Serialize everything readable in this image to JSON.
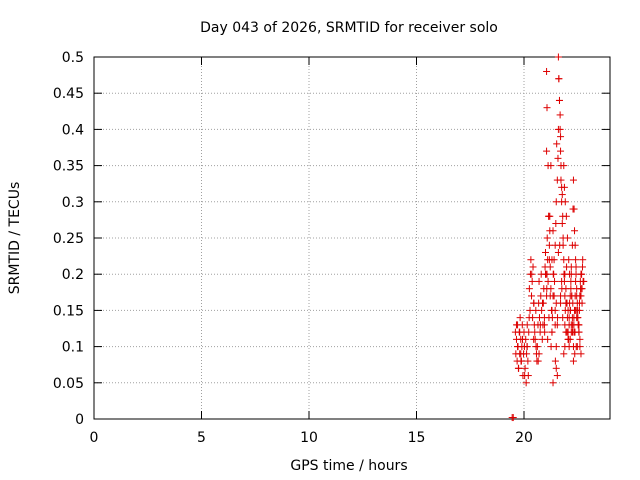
{
  "chart_data": {
    "type": "scatter",
    "title": "Day 043 of 2026, SRMTID for receiver solo",
    "xlabel": "GPS time / hours",
    "ylabel": "SRMTID / TECUs",
    "xlim": [
      0,
      24
    ],
    "ylim": [
      0,
      0.5
    ],
    "x_ticks": [
      "0",
      "5",
      "10",
      "15",
      "20"
    ],
    "y_ticks": [
      "0",
      "0.05",
      "0.1",
      "0.15",
      "0.2",
      "0.25",
      "0.3",
      "0.35",
      "0.4",
      "0.45",
      "0.5"
    ],
    "grid": true,
    "marker": "+",
    "marker_color": "#dd0000",
    "series": [
      {
        "x": [
          19.45,
          19.5,
          19.6,
          19.62,
          19.65,
          19.68,
          19.7,
          19.72,
          19.75,
          19.78,
          19.8,
          19.82,
          19.85,
          19.88,
          19.9,
          19.92,
          19.95,
          19.98,
          20.0,
          20.02,
          20.05,
          20.08,
          20.1,
          20.12,
          20.15,
          20.18,
          20.2,
          20.22,
          20.25,
          20.28,
          20.3,
          20.32,
          20.35,
          20.38,
          20.4,
          20.42,
          20.45,
          20.48,
          20.5,
          20.52,
          20.55,
          20.58,
          20.6,
          20.62,
          20.65,
          20.68,
          20.7,
          20.72,
          20.75,
          20.78,
          20.8,
          20.82,
          20.85,
          20.88,
          20.9,
          20.92,
          20.95,
          20.98,
          21.0,
          21.02,
          21.05,
          21.08,
          21.1,
          21.12,
          21.15,
          21.18,
          21.2,
          21.22,
          21.25,
          21.28,
          21.3,
          21.32,
          21.35,
          21.38,
          21.4,
          21.42,
          21.45,
          21.48,
          21.5,
          21.52,
          21.55,
          21.58,
          21.6,
          21.62,
          21.65,
          21.68,
          21.7,
          21.72,
          21.75,
          21.78,
          21.8,
          21.82,
          21.85,
          21.88,
          21.9,
          21.92,
          21.95,
          21.98,
          22.0,
          22.02,
          22.05,
          22.08,
          22.1,
          22.12,
          22.15,
          22.18,
          22.2,
          22.22,
          22.25,
          22.28,
          22.3,
          22.32,
          22.35,
          22.38,
          22.4,
          22.42,
          22.45,
          22.48,
          22.5,
          22.52,
          22.55,
          22.58,
          22.6,
          22.62,
          22.65,
          22.68,
          22.7,
          22.75,
          19.7,
          19.74,
          19.8,
          19.86,
          19.93,
          20.03,
          20.14,
          20.24,
          20.36,
          20.46,
          20.56,
          20.66,
          20.76,
          20.86,
          20.96,
          21.06,
          21.16,
          21.26,
          21.36,
          21.46,
          21.56,
          21.66,
          21.76,
          21.86,
          21.96,
          22.06,
          22.16,
          22.26,
          22.36,
          22.46,
          22.56,
          22.66,
          21.05,
          21.07,
          21.25,
          21.3,
          21.4,
          21.45,
          21.5,
          21.55,
          21.7,
          21.8,
          21.85,
          21.9,
          21.95,
          22.2,
          22.3,
          22.5,
          22.6,
          22.65,
          21.0,
          21.2,
          21.35,
          21.6,
          21.75,
          22.0,
          22.1,
          22.15,
          22.25,
          22.35,
          22.45,
          22.55,
          22.7,
          19.65,
          19.85,
          20.15,
          20.45,
          20.7,
          20.95,
          21.1,
          21.3,
          21.5,
          21.7,
          21.9,
          22.05,
          22.2,
          22.4,
          22.6,
          22.72
        ],
        "y": [
          0.002,
          0.002,
          0.12,
          0.09,
          0.11,
          0.08,
          0.13,
          0.1,
          0.07,
          0.12,
          0.09,
          0.14,
          0.11,
          0.08,
          0.1,
          0.13,
          0.06,
          0.09,
          0.12,
          0.1,
          0.07,
          0.11,
          0.05,
          0.09,
          0.13,
          0.08,
          0.06,
          0.12,
          0.18,
          0.15,
          0.2,
          0.22,
          0.17,
          0.19,
          0.14,
          0.21,
          0.16,
          0.13,
          0.12,
          0.11,
          0.15,
          0.09,
          0.08,
          0.1,
          0.13,
          0.16,
          0.19,
          0.14,
          0.12,
          0.17,
          0.2,
          0.15,
          0.11,
          0.13,
          0.16,
          0.18,
          0.14,
          0.21,
          0.23,
          0.2,
          0.17,
          0.25,
          0.22,
          0.19,
          0.28,
          0.24,
          0.26,
          0.21,
          0.18,
          0.15,
          0.12,
          0.14,
          0.17,
          0.2,
          0.22,
          0.19,
          0.24,
          0.27,
          0.3,
          0.38,
          0.33,
          0.36,
          0.4,
          0.47,
          0.44,
          0.42,
          0.39,
          0.35,
          0.32,
          0.31,
          0.28,
          0.25,
          0.22,
          0.19,
          0.17,
          0.15,
          0.18,
          0.21,
          0.16,
          0.14,
          0.12,
          0.11,
          0.13,
          0.16,
          0.15,
          0.18,
          0.2,
          0.17,
          0.14,
          0.12,
          0.1,
          0.13,
          0.15,
          0.17,
          0.19,
          0.21,
          0.18,
          0.16,
          0.14,
          0.13,
          0.12,
          0.15,
          0.17,
          0.19,
          0.2,
          0.18,
          0.16,
          0.19,
          0.1,
          0.07,
          0.12,
          0.08,
          0.11,
          0.06,
          0.1,
          0.14,
          0.2,
          0.16,
          0.1,
          0.08,
          0.13,
          0.16,
          0.12,
          0.18,
          0.14,
          0.1,
          0.2,
          0.08,
          0.14,
          0.24,
          0.18,
          0.2,
          0.16,
          0.11,
          0.15,
          0.13,
          0.09,
          0.15,
          0.12,
          0.2,
          0.37,
          0.2,
          0.35,
          0.22,
          0.17,
          0.13,
          0.07,
          0.06,
          0.16,
          0.14,
          0.09,
          0.1,
          0.12,
          0.12,
          0.08,
          0.14,
          0.1,
          0.17,
          0.2,
          0.28,
          0.26,
          0.23,
          0.19,
          0.12,
          0.1,
          0.11,
          0.12,
          0.12,
          0.14,
          0.13,
          0.18,
          0.13,
          0.09,
          0.1,
          0.11,
          0.09,
          0.13,
          0.11,
          0.15,
          0.16,
          0.17,
          0.13,
          0.15,
          0.13,
          0.15,
          0.17,
          0.21
        ]
      },
      {
        "x": [
          21.05,
          21.07,
          21.12,
          21.15,
          21.18,
          21.22,
          21.3,
          21.35,
          21.45,
          21.5,
          21.55,
          21.6,
          21.62,
          21.65,
          21.68,
          21.7,
          21.72,
          21.75,
          21.78,
          21.82,
          21.9,
          21.95,
          22.0,
          22.05,
          22.1,
          22.15,
          22.2,
          22.25,
          22.28,
          22.3,
          22.33,
          22.35,
          22.38,
          22.4,
          22.42,
          22.45,
          22.5,
          22.55,
          22.6,
          22.65,
          21.85,
          21.88,
          21.92,
          21.97,
          22.02,
          22.08,
          22.12,
          22.18,
          22.22,
          22.27,
          22.32,
          22.37,
          22.43,
          22.48,
          22.53,
          22.58,
          22.63,
          22.68,
          22.73,
          22.78
        ],
        "y": [
          0.48,
          0.43,
          0.35,
          0.28,
          0.22,
          0.17,
          0.12,
          0.05,
          0.15,
          0.1,
          0.13,
          0.5,
          0.47,
          0.44,
          0.4,
          0.37,
          0.33,
          0.3,
          0.27,
          0.24,
          0.2,
          0.16,
          0.12,
          0.11,
          0.14,
          0.17,
          0.21,
          0.24,
          0.29,
          0.33,
          0.29,
          0.26,
          0.24,
          0.22,
          0.2,
          0.17,
          0.15,
          0.13,
          0.11,
          0.09,
          0.35,
          0.32,
          0.3,
          0.28,
          0.25,
          0.22,
          0.2,
          0.19,
          0.17,
          0.16,
          0.14,
          0.12,
          0.1,
          0.1,
          0.13,
          0.16,
          0.18,
          0.2,
          0.22,
          0.19
        ]
      }
    ]
  }
}
